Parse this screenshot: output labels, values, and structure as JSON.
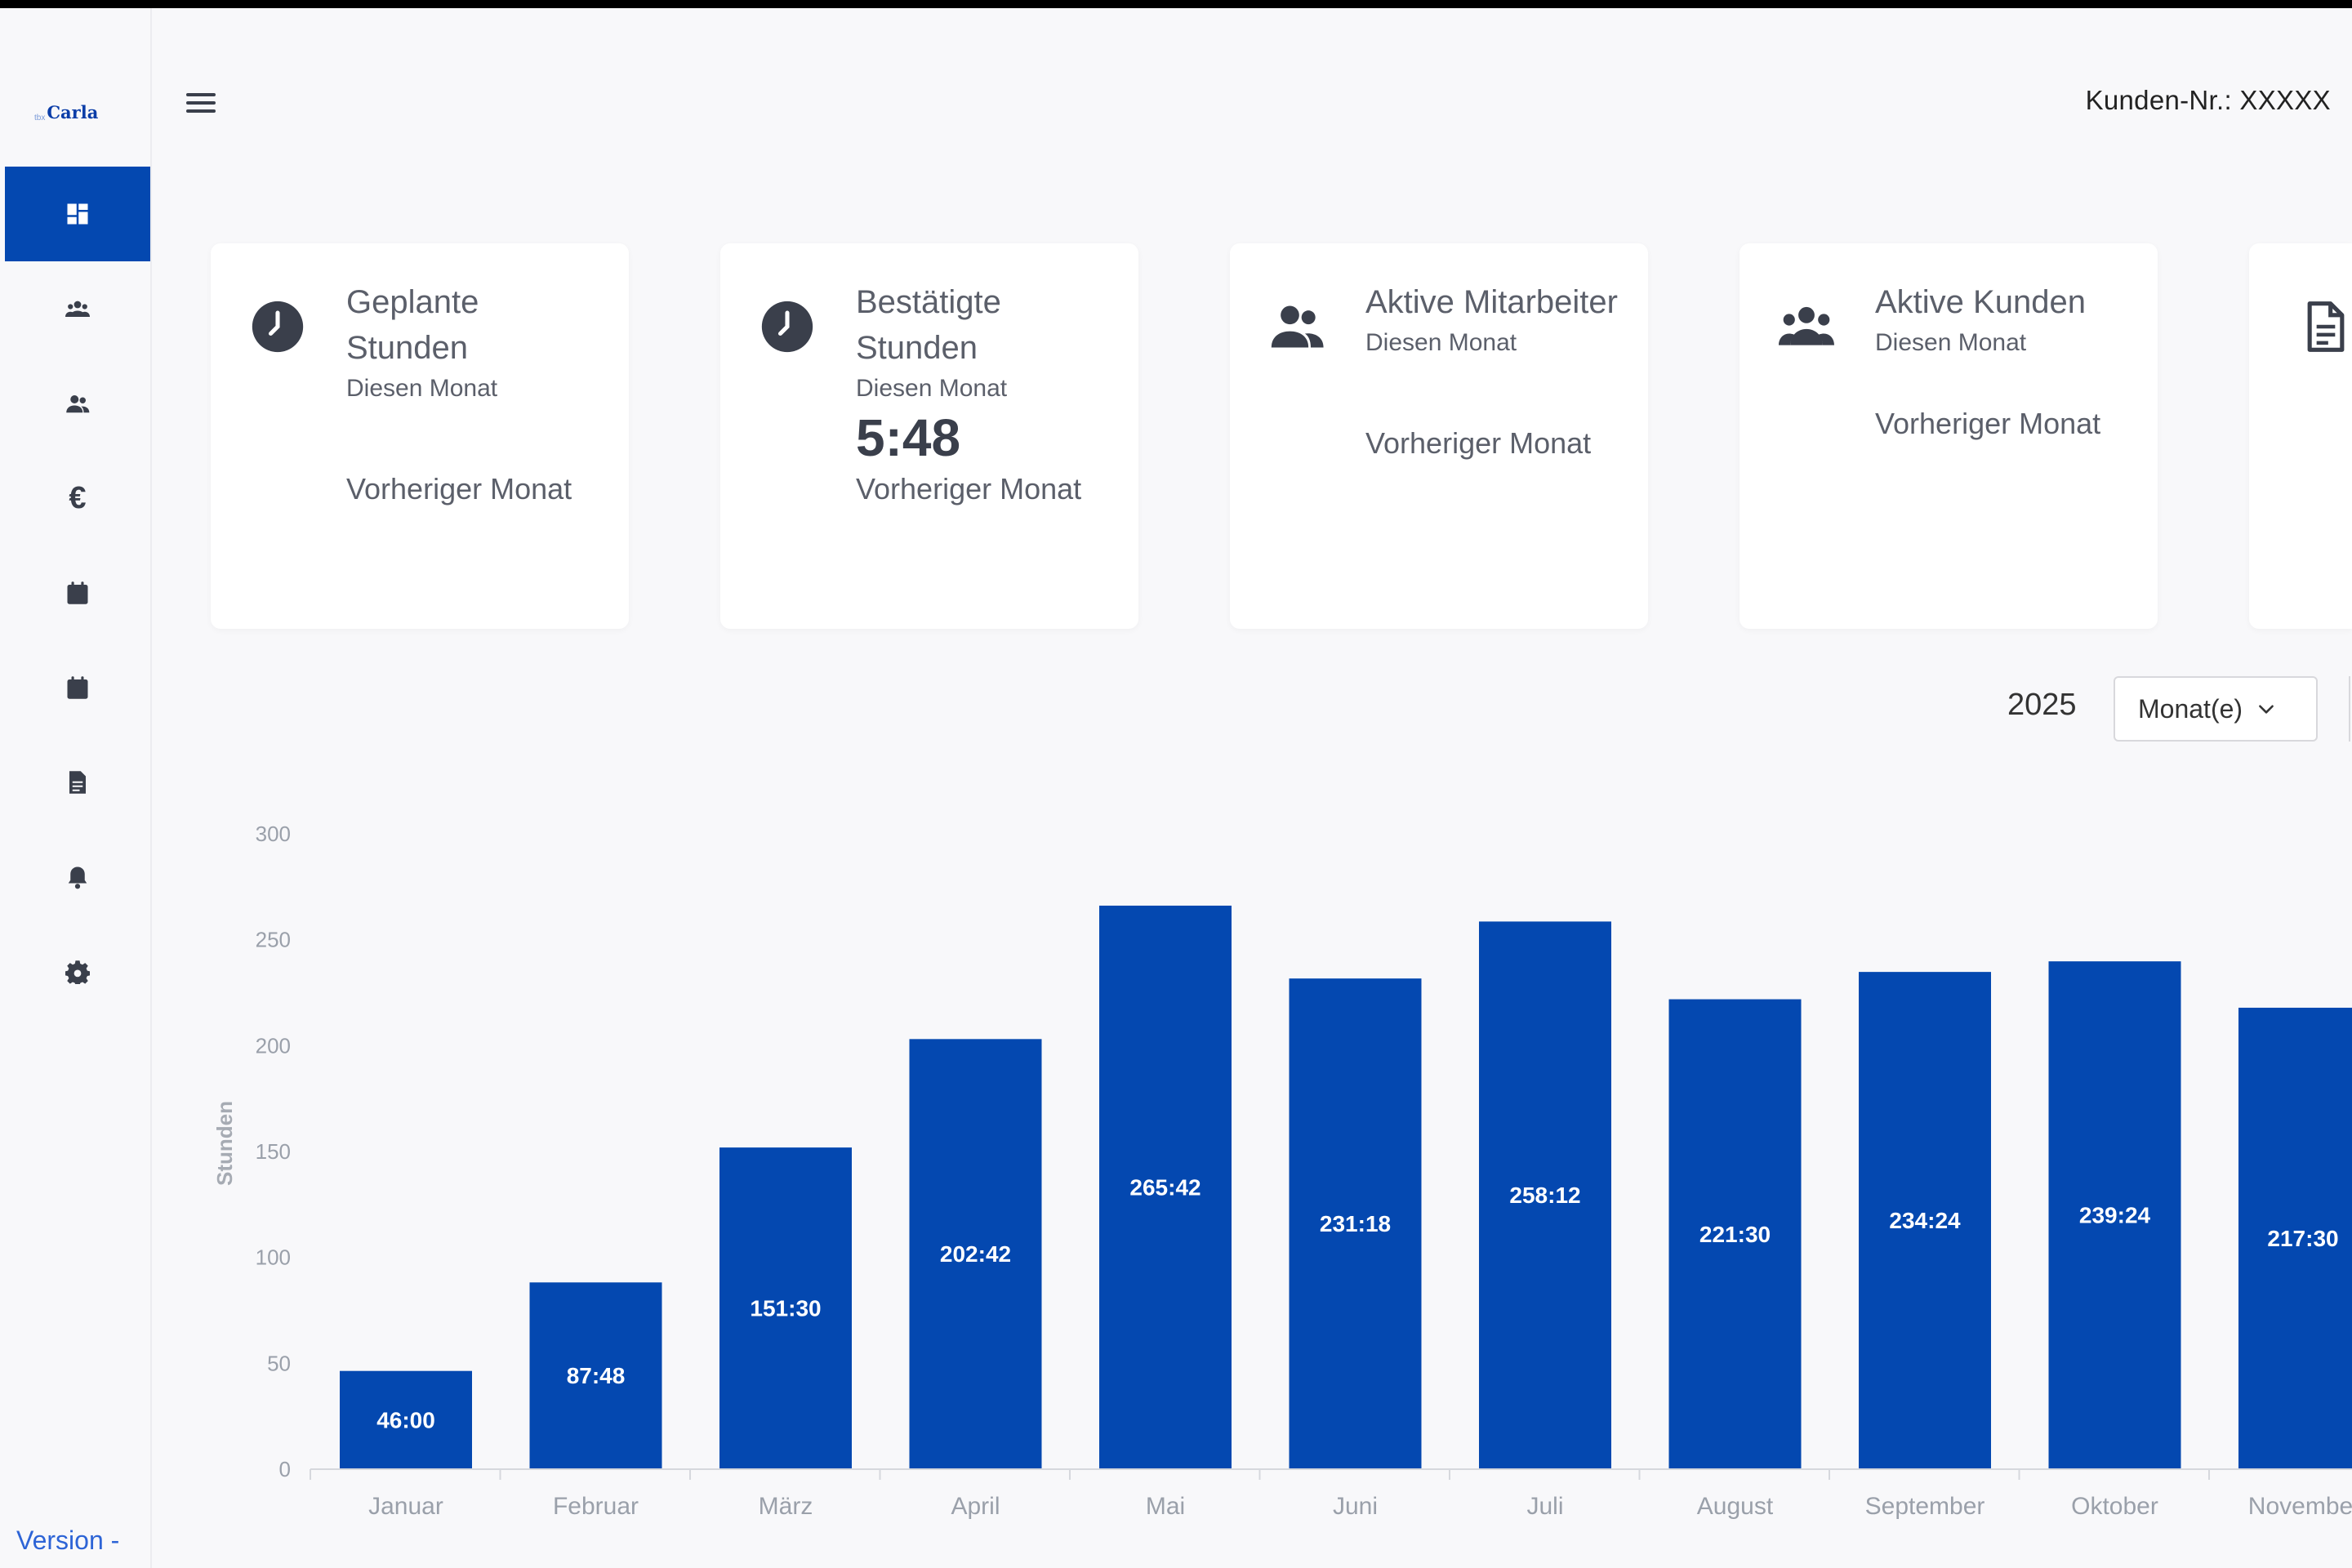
{
  "app": {
    "logo_small": "tbx",
    "logo_name": "Carla",
    "version_label": "Version -"
  },
  "header": {
    "customer_label": "Kunden-Nr.: XXXXX"
  },
  "sidebar": {
    "items": [
      {
        "name": "dashboard-icon",
        "active": true
      },
      {
        "name": "customers-icon",
        "active": false
      },
      {
        "name": "employees-icon",
        "active": false
      },
      {
        "name": "euro-icon",
        "active": false,
        "glyph": "€"
      },
      {
        "name": "calendar-icon",
        "active": false
      },
      {
        "name": "calendar-alt-icon",
        "active": false
      },
      {
        "name": "document-icon",
        "active": false
      },
      {
        "name": "bell-icon",
        "active": false
      },
      {
        "name": "gear-icon",
        "active": false
      }
    ]
  },
  "cards": [
    {
      "title": "Geplante Stunden",
      "subtitle": "Diesen Monat",
      "value": "",
      "prev": "Vorheriger Monat",
      "icon": "clock-icon"
    },
    {
      "title": "Bestätigte Stunden",
      "subtitle": "Diesen Monat",
      "value": "5:48",
      "prev": "Vorheriger Monat",
      "icon": "clock-icon"
    },
    {
      "title": "Aktive Mitarbeiter",
      "subtitle": "Diesen Monat",
      "value": "",
      "prev": "Vorheriger Monat",
      "icon": "users-icon"
    },
    {
      "title": "Aktive Kunden",
      "subtitle": "Diesen Monat",
      "value": "",
      "prev": "Vorheriger Monat",
      "icon": "group-icon"
    }
  ],
  "filters": {
    "year": "2025",
    "period_select": "Monat(e)"
  },
  "colors": {
    "accent": "#0448b0",
    "bar": "#0448b0"
  },
  "chart_data": {
    "type": "bar",
    "categories": [
      "Januar",
      "Februar",
      "März",
      "April",
      "Mai",
      "Juni",
      "Juli",
      "August",
      "September",
      "Oktober",
      "November"
    ],
    "values": [
      46.0,
      87.8,
      151.5,
      202.7,
      265.7,
      231.3,
      258.2,
      221.5,
      234.4,
      239.4,
      217.5
    ],
    "data_labels": [
      "46:00",
      "87:48",
      "151:30",
      "202:42",
      "265:42",
      "231:18",
      "258:12",
      "221:30",
      "234:24",
      "239:24",
      "217:30"
    ],
    "ylabel": "Stunden",
    "yticks": [
      0,
      50,
      100,
      150,
      200,
      250,
      300
    ],
    "ylim": [
      0,
      300
    ],
    "grid": false,
    "legend": "none"
  }
}
